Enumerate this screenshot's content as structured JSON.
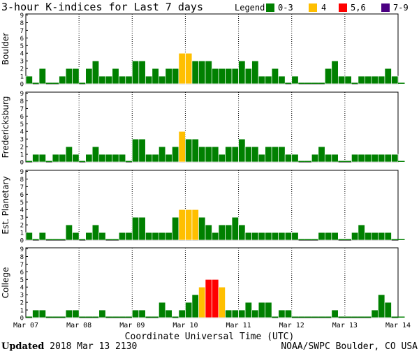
{
  "title": "3-hour K-indices for Last 7 days",
  "legend": {
    "label": "Legend:",
    "items": [
      {
        "label": "0-3",
        "color": "#008000"
      },
      {
        "label": "4",
        "color": "#ffbf00"
      },
      {
        "label": "5,6",
        "color": "#ff0000"
      },
      {
        "label": "7-9",
        "color": "#4b0082"
      }
    ]
  },
  "footer": {
    "updated_label": "Updated",
    "updated_value": "2018 Mar 13 2130",
    "source": "NOAA/SWPC Boulder, CO USA"
  },
  "chart_data": [
    {
      "type": "bar",
      "ylabel": "Boulder",
      "ylim": [
        0,
        9
      ],
      "yticks": [
        0,
        1,
        2,
        3,
        4,
        5,
        6,
        7,
        8,
        9
      ],
      "x_ticks": [
        "Mar 07",
        "Mar 08",
        "Mar 09",
        "Mar 10",
        "Mar 11",
        "Mar 12",
        "Mar 13",
        "Mar 14"
      ],
      "values": [
        1,
        0,
        2,
        0,
        0,
        1,
        2,
        2,
        0,
        2,
        3,
        1,
        1,
        2,
        1,
        1,
        3,
        3,
        1,
        2,
        1,
        2,
        2,
        4,
        4,
        3,
        3,
        3,
        2,
        2,
        2,
        2,
        3,
        2,
        3,
        1,
        1,
        2,
        1,
        0,
        1,
        0,
        0,
        0,
        0,
        2,
        3,
        1,
        1,
        0,
        1,
        1,
        1,
        1,
        2,
        1,
        0
      ]
    },
    {
      "type": "bar",
      "ylabel": "Fredericksburg",
      "ylim": [
        0,
        9
      ],
      "yticks": [
        0,
        1,
        2,
        3,
        4,
        5,
        6,
        7,
        8,
        9
      ],
      "x_ticks": [
        "Mar 07",
        "Mar 08",
        "Mar 09",
        "Mar 10",
        "Mar 11",
        "Mar 12",
        "Mar 13",
        "Mar 14"
      ],
      "values": [
        0,
        1,
        1,
        0,
        1,
        1,
        2,
        1,
        0,
        1,
        2,
        1,
        1,
        1,
        1,
        0,
        3,
        3,
        1,
        1,
        2,
        1,
        2,
        4,
        3,
        3,
        2,
        2,
        2,
        1,
        2,
        2,
        3,
        2,
        2,
        1,
        2,
        2,
        2,
        1,
        1,
        0,
        0,
        1,
        2,
        1,
        1,
        0,
        0,
        1,
        1,
        1,
        1,
        1,
        1,
        1,
        0
      ]
    },
    {
      "type": "bar",
      "ylabel": "Est. Planetary",
      "ylim": [
        0,
        9
      ],
      "yticks": [
        0,
        1,
        2,
        3,
        4,
        5,
        6,
        7,
        8,
        9
      ],
      "x_ticks": [
        "Mar 07",
        "Mar 08",
        "Mar 09",
        "Mar 10",
        "Mar 11",
        "Mar 12",
        "Mar 13",
        "Mar 14"
      ],
      "values": [
        1,
        0,
        1,
        0,
        0,
        0,
        2,
        1,
        0,
        1,
        2,
        1,
        0,
        0,
        1,
        1,
        3,
        3,
        1,
        1,
        1,
        1,
        3,
        4,
        4,
        4,
        3,
        2,
        1,
        2,
        2,
        3,
        2,
        1,
        1,
        1,
        1,
        1,
        1,
        1,
        1,
        0,
        0,
        0,
        1,
        1,
        1,
        0,
        0,
        1,
        2,
        1,
        1,
        1,
        1,
        0,
        0
      ]
    },
    {
      "type": "bar",
      "ylabel": "College",
      "ylim": [
        0,
        9
      ],
      "yticks": [
        0,
        1,
        2,
        3,
        4,
        5,
        6,
        7,
        8,
        9
      ],
      "x_ticks": [
        "Mar 07",
        "Mar 08",
        "Mar 09",
        "Mar 10",
        "Mar 11",
        "Mar 12",
        "Mar 13",
        "Mar 14"
      ],
      "values": [
        0,
        1,
        1,
        0,
        0,
        0,
        1,
        1,
        0,
        0,
        0,
        1,
        0,
        0,
        0,
        0,
        1,
        1,
        0,
        0,
        2,
        1,
        0,
        1,
        2,
        3,
        4,
        5,
        5,
        4,
        1,
        1,
        1,
        2,
        1,
        2,
        2,
        0,
        1,
        1,
        0,
        0,
        0,
        0,
        0,
        0,
        1,
        0,
        0,
        0,
        0,
        0,
        1,
        3,
        2,
        0,
        0
      ]
    }
  ]
}
